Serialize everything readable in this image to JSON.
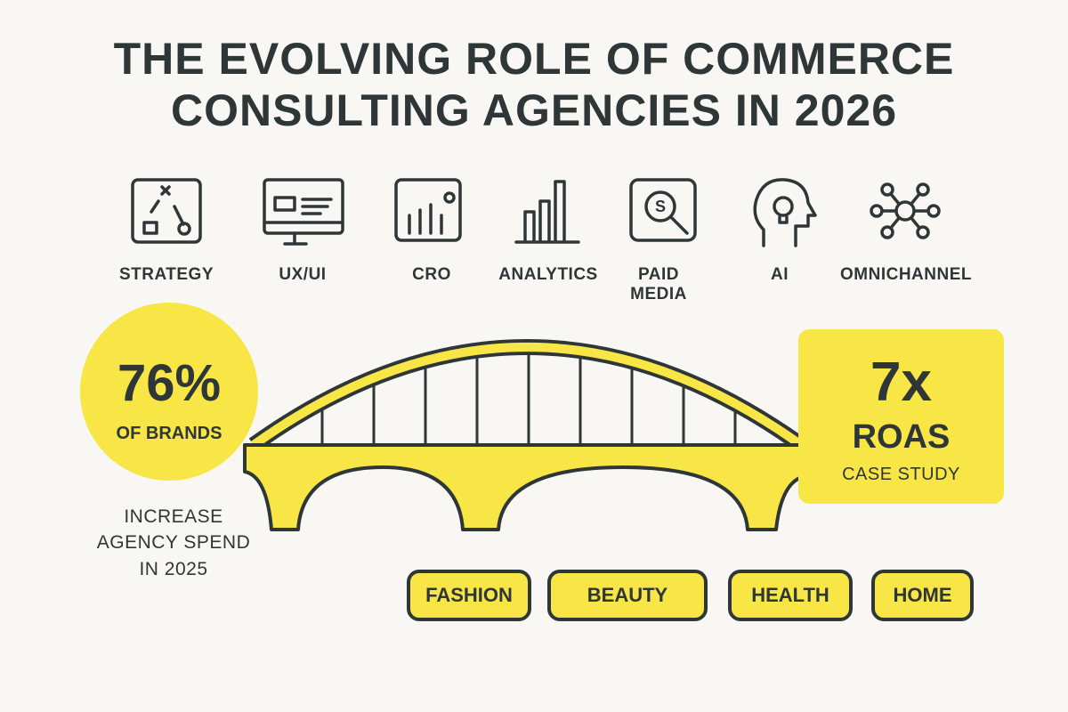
{
  "header": {
    "title_lines": [
      "THE EVOLVING ROLE OF COMMERCE",
      "CONSULTING AGENCIES IN 2026"
    ]
  },
  "services": [
    "STRATEGY",
    "UX/UI",
    "CRO",
    "ANALYTICS",
    "PAID MEDIA",
    "AI",
    "OMNICHANNEL"
  ],
  "left_stat": {
    "value": "76%",
    "label": "OF BRANDS",
    "caption": "INCREASE AGENCY SPEND IN 2025"
  },
  "right_stat": {
    "value": "7x",
    "label": "ROAS",
    "caption": "CASE STUDY"
  },
  "industries": [
    "FASHION",
    "BEAUTY",
    "HEALTH",
    "HOME"
  ]
}
